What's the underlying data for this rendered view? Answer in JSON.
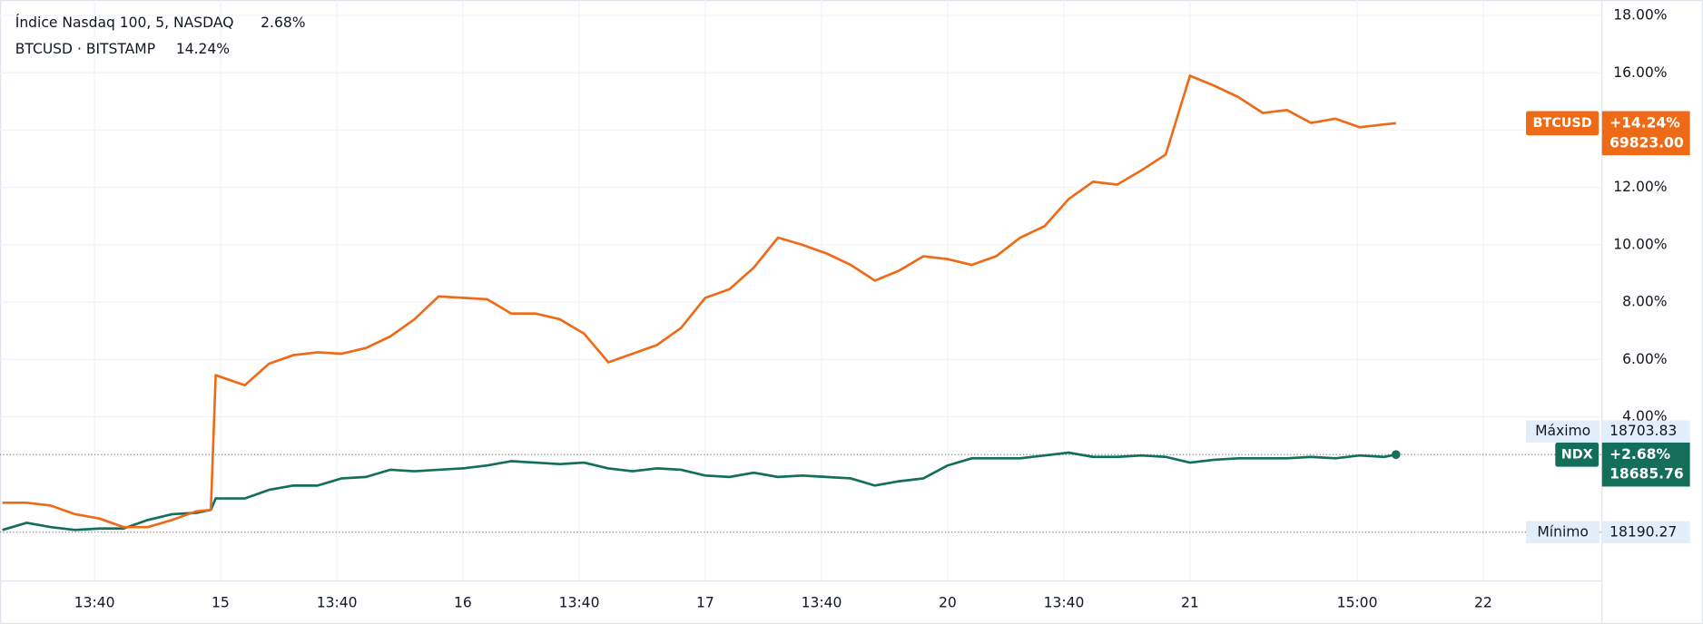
{
  "chart_data": {
    "type": "line",
    "x": [
      10,
      20,
      30,
      40,
      50,
      60,
      70,
      80,
      90,
      96,
      98,
      110,
      120,
      130,
      140,
      150,
      160,
      170,
      180,
      190,
      200,
      210,
      220,
      230,
      240,
      250,
      260,
      270,
      280,
      290,
      300,
      310,
      320,
      330,
      340,
      350,
      360,
      370,
      380,
      390,
      400,
      410,
      420,
      430,
      440,
      450,
      460,
      470,
      480,
      490,
      500,
      510,
      520,
      530,
      540,
      550,
      560,
      570,
      580,
      585
    ],
    "xlim": [
      9,
      670
    ],
    "xticks": [
      {
        "value": 48,
        "label": "13:40"
      },
      {
        "value": 100,
        "label": "15"
      },
      {
        "value": 148,
        "label": "13:40"
      },
      {
        "value": 200,
        "label": "16"
      },
      {
        "value": 248,
        "label": "13:40"
      },
      {
        "value": 300,
        "label": "17"
      },
      {
        "value": 348,
        "label": "13:40"
      },
      {
        "value": 400,
        "label": "20"
      },
      {
        "value": 448,
        "label": "13:40"
      },
      {
        "value": 500,
        "label": "21"
      },
      {
        "value": 569,
        "label": "15:00"
      },
      {
        "value": 621,
        "label": "22"
      }
    ],
    "ylim": [
      -1.73,
      18.54
    ],
    "yticks": [
      {
        "value": 4,
        "label": "4.00%"
      },
      {
        "value": 6,
        "label": "6.00%"
      },
      {
        "value": 8,
        "label": "8.00%"
      },
      {
        "value": 10,
        "label": "10.00%"
      },
      {
        "value": 12,
        "label": "12.00%"
      },
      {
        "value": 14,
        "label": "14.00%"
      },
      {
        "value": 16,
        "label": "16.00%"
      },
      {
        "value": 18,
        "label": "18.00%"
      }
    ],
    "grid": true,
    "series": [
      {
        "name": "Índice Nasdaq 100, 5, NASDAQ",
        "short_name": "NDX",
        "change_label": "2.68%",
        "tag_change": "+2.68%",
        "last_price": "18685.76",
        "color": "#136e5a",
        "values": [
          0.05,
          0.3,
          0.15,
          0.05,
          0.1,
          0.1,
          0.4,
          0.6,
          0.65,
          0.75,
          1.15,
          1.15,
          1.45,
          1.6,
          1.6,
          1.85,
          1.9,
          2.15,
          2.1,
          2.15,
          2.2,
          2.3,
          2.45,
          2.4,
          2.35,
          2.4,
          2.2,
          2.1,
          2.2,
          2.15,
          1.95,
          1.9,
          2.05,
          1.9,
          1.95,
          1.9,
          1.85,
          1.6,
          1.75,
          1.85,
          2.3,
          2.55,
          2.55,
          2.55,
          2.65,
          2.75,
          2.6,
          2.6,
          2.65,
          2.6,
          2.4,
          2.5,
          2.55,
          2.55,
          2.55,
          2.6,
          2.55,
          2.65,
          2.6,
          2.68
        ]
      },
      {
        "name": "BTCUSD · BITSTAMP",
        "short_name": "BTCUSD",
        "change_label": "14.24%",
        "tag_change": "+14.24%",
        "last_price": "69823.00",
        "color": "#ef6a16",
        "values": [
          1.0,
          1.0,
          0.9,
          0.6,
          0.45,
          0.15,
          0.15,
          0.4,
          0.7,
          0.75,
          5.45,
          5.1,
          5.85,
          6.15,
          6.25,
          6.2,
          6.4,
          6.8,
          7.4,
          8.2,
          8.15,
          8.1,
          7.6,
          7.6,
          7.4,
          6.9,
          5.9,
          6.2,
          6.5,
          7.1,
          8.15,
          8.45,
          9.2,
          10.25,
          10.0,
          9.7,
          9.3,
          8.75,
          9.1,
          9.6,
          9.5,
          9.3,
          9.6,
          10.25,
          10.65,
          11.6,
          12.2,
          12.1,
          12.6,
          13.15,
          15.9,
          15.55,
          15.15,
          14.6,
          14.7,
          14.25,
          14.4,
          14.1,
          14.2,
          14.24
        ]
      }
    ],
    "high": {
      "label": "Máximo",
      "price": "18703.83"
    },
    "low": {
      "label": "Mínimo",
      "price": "18190.27"
    }
  }
}
